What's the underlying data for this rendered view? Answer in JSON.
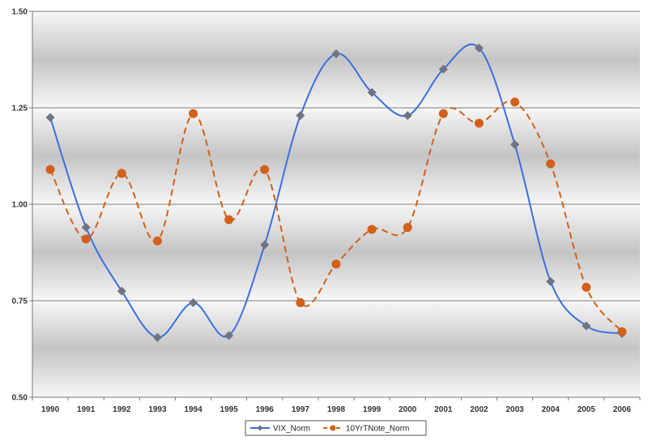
{
  "chart_data": {
    "type": "line",
    "x": [
      1990,
      1991,
      1992,
      1993,
      1994,
      1995,
      1996,
      1997,
      1998,
      1999,
      2000,
      2001,
      2002,
      2003,
      2004,
      2005,
      2006
    ],
    "x_tick_labels": [
      "1990",
      "1991",
      "1992",
      "1993",
      "1994",
      "1995",
      "1996",
      "1997",
      "1998",
      "1999",
      "2000",
      "2001",
      "2002",
      "2003",
      "2004",
      "2005",
      "2006"
    ],
    "y_tick_labels": [
      "0.50",
      "0.75",
      "1.00",
      "1.25",
      "1.50"
    ],
    "y_ticks": [
      0.5,
      0.75,
      1.0,
      1.25,
      1.5
    ],
    "ylim": [
      0.5,
      1.5
    ],
    "grid": "horizontal",
    "legend_position": "bottom",
    "series": [
      {
        "name": "VIX_Norm",
        "color": "#3A6FE0",
        "marker": "diamond",
        "marker_color": "#6F7382",
        "dash": false,
        "values": [
          1.225,
          0.94,
          0.775,
          0.655,
          0.745,
          0.66,
          0.895,
          1.23,
          1.39,
          1.29,
          1.23,
          1.35,
          1.405,
          1.155,
          0.8,
          0.685,
          0.665
        ]
      },
      {
        "name": "10YrTNote_Norm",
        "color": "#D2601A",
        "marker": "circle",
        "marker_color": "#D2601A",
        "dash": true,
        "values": [
          1.09,
          0.91,
          1.08,
          0.905,
          1.235,
          0.96,
          1.09,
          0.745,
          0.845,
          0.935,
          0.94,
          1.235,
          1.21,
          1.265,
          1.105,
          0.785,
          0.67
        ]
      }
    ]
  }
}
